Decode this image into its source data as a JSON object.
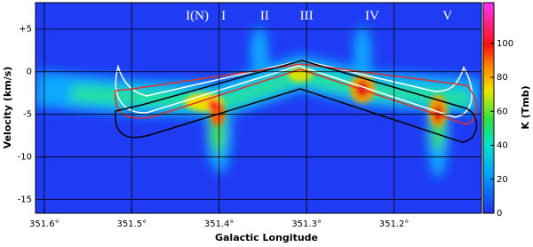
{
  "chart_data": {
    "type": "image",
    "xlabel": "Galactic Longitude",
    "ylabel": "Velocity (km/s)",
    "colorbar_label": "K (Tmb)",
    "xlim": [
      351.61,
      351.1
    ],
    "xticks": [
      {
        "value": 351.6,
        "label": "351.6°"
      },
      {
        "value": 351.5,
        "label": "351.5°"
      },
      {
        "value": 351.4,
        "label": "351.4°"
      },
      {
        "value": 351.3,
        "label": "351.3°"
      },
      {
        "value": 351.2,
        "label": "351.2°"
      }
    ],
    "ylim": [
      -16.6,
      8.1
    ],
    "yticks": [
      {
        "value": 5,
        "label": "+5"
      },
      0,
      -5,
      -10,
      -15
    ],
    "clim": [
      0,
      124
    ],
    "cticks": [
      0,
      20,
      40,
      60,
      80,
      100
    ],
    "grid": true,
    "annotations": [
      {
        "text": "I(N)",
        "x": 351.425,
        "y": 6.5
      },
      {
        "text": "I",
        "x": 351.395,
        "y": 6.5
      },
      {
        "text": "II",
        "x": 351.348,
        "y": 6.5
      },
      {
        "text": "III",
        "x": 351.3,
        "y": 6.5
      },
      {
        "text": "IV",
        "x": 351.225,
        "y": 6.5
      },
      {
        "text": "V",
        "x": 351.139,
        "y": 6.5
      }
    ]
  }
}
